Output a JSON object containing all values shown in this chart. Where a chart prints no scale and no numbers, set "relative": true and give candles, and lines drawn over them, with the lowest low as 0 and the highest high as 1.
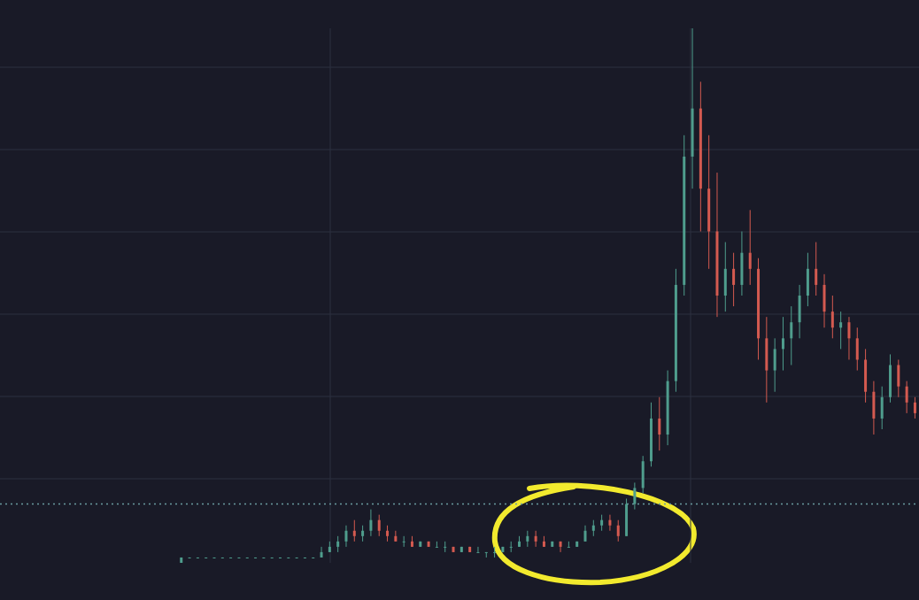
{
  "chart_data": {
    "type": "candlestick",
    "relative": true,
    "grid": true,
    "categories": [
      null,
      null,
      null,
      null,
      null,
      null,
      null,
      null,
      null,
      null,
      null,
      null,
      null,
      null,
      null,
      null,
      null,
      null,
      null,
      null,
      null,
      null,
      null,
      null,
      null,
      null,
      null,
      null,
      null,
      null,
      null,
      null,
      null,
      null,
      null,
      null,
      null,
      null,
      null,
      null,
      null,
      null,
      null,
      null,
      null,
      null,
      null,
      null,
      null,
      null,
      null,
      null,
      null,
      null,
      null,
      null,
      null,
      null,
      null,
      null,
      null,
      null,
      null,
      null,
      null,
      null,
      null,
      null,
      null,
      null,
      null,
      null,
      null,
      null,
      null,
      null,
      null,
      null,
      null,
      null,
      null,
      null,
      null,
      null,
      null,
      null,
      null,
      null,
      null,
      null
    ],
    "ohlc": [
      [
        0.0,
        0.01,
        0.0,
        0.01
      ],
      [
        0.01,
        0.01,
        0.01,
        0.01
      ],
      [
        0.01,
        0.01,
        0.01,
        0.01
      ],
      [
        0.01,
        0.01,
        0.01,
        0.01
      ],
      [
        0.01,
        0.01,
        0.01,
        0.01
      ],
      [
        0.01,
        0.01,
        0.01,
        0.01
      ],
      [
        0.01,
        0.01,
        0.01,
        0.01
      ],
      [
        0.01,
        0.01,
        0.01,
        0.01
      ],
      [
        0.01,
        0.01,
        0.01,
        0.01
      ],
      [
        0.01,
        0.01,
        0.01,
        0.01
      ],
      [
        0.01,
        0.01,
        0.01,
        0.01
      ],
      [
        0.01,
        0.01,
        0.01,
        0.01
      ],
      [
        0.01,
        0.01,
        0.01,
        0.01
      ],
      [
        0.01,
        0.01,
        0.01,
        0.01
      ],
      [
        0.01,
        0.01,
        0.01,
        0.01
      ],
      [
        0.01,
        0.01,
        0.01,
        0.01
      ],
      [
        0.01,
        0.01,
        0.01,
        0.01
      ],
      [
        0.01,
        0.03,
        0.01,
        0.02
      ],
      [
        0.02,
        0.04,
        0.02,
        0.03
      ],
      [
        0.03,
        0.05,
        0.02,
        0.04
      ],
      [
        0.04,
        0.07,
        0.03,
        0.06
      ],
      [
        0.06,
        0.08,
        0.04,
        0.05
      ],
      [
        0.05,
        0.07,
        0.04,
        0.06
      ],
      [
        0.06,
        0.1,
        0.05,
        0.08
      ],
      [
        0.08,
        0.09,
        0.05,
        0.06
      ],
      [
        0.06,
        0.07,
        0.04,
        0.05
      ],
      [
        0.05,
        0.06,
        0.04,
        0.04
      ],
      [
        0.04,
        0.05,
        0.03,
        0.04
      ],
      [
        0.04,
        0.05,
        0.03,
        0.03
      ],
      [
        0.03,
        0.04,
        0.03,
        0.04
      ],
      [
        0.04,
        0.04,
        0.03,
        0.03
      ],
      [
        0.03,
        0.04,
        0.03,
        0.03
      ],
      [
        0.03,
        0.04,
        0.02,
        0.03
      ],
      [
        0.03,
        0.03,
        0.02,
        0.02
      ],
      [
        0.02,
        0.03,
        0.02,
        0.03
      ],
      [
        0.03,
        0.03,
        0.02,
        0.02
      ],
      [
        0.02,
        0.03,
        0.02,
        0.02
      ],
      [
        0.02,
        0.02,
        0.01,
        0.02
      ],
      [
        0.02,
        0.03,
        0.01,
        0.02
      ],
      [
        0.02,
        0.03,
        0.02,
        0.03
      ],
      [
        0.03,
        0.04,
        0.02,
        0.03
      ],
      [
        0.03,
        0.05,
        0.03,
        0.04
      ],
      [
        0.04,
        0.06,
        0.03,
        0.05
      ],
      [
        0.05,
        0.06,
        0.03,
        0.04
      ],
      [
        0.04,
        0.05,
        0.03,
        0.03
      ],
      [
        0.03,
        0.04,
        0.03,
        0.04
      ],
      [
        0.04,
        0.04,
        0.02,
        0.03
      ],
      [
        0.03,
        0.04,
        0.03,
        0.03
      ],
      [
        0.03,
        0.04,
        0.03,
        0.04
      ],
      [
        0.04,
        0.07,
        0.04,
        0.06
      ],
      [
        0.06,
        0.08,
        0.05,
        0.07
      ],
      [
        0.07,
        0.09,
        0.06,
        0.08
      ],
      [
        0.08,
        0.09,
        0.06,
        0.07
      ],
      [
        0.07,
        0.08,
        0.04,
        0.05
      ],
      [
        0.05,
        0.12,
        0.05,
        0.11
      ],
      [
        0.11,
        0.15,
        0.1,
        0.14
      ],
      [
        0.14,
        0.2,
        0.13,
        0.19
      ],
      [
        0.19,
        0.3,
        0.18,
        0.27
      ],
      [
        0.27,
        0.31,
        0.21,
        0.24
      ],
      [
        0.24,
        0.36,
        0.22,
        0.34
      ],
      [
        0.34,
        0.55,
        0.32,
        0.52
      ],
      [
        0.52,
        0.8,
        0.5,
        0.76
      ],
      [
        0.76,
        1.0,
        0.7,
        0.85
      ],
      [
        0.85,
        0.9,
        0.62,
        0.7
      ],
      [
        0.7,
        0.8,
        0.55,
        0.62
      ],
      [
        0.62,
        0.73,
        0.46,
        0.5
      ],
      [
        0.5,
        0.6,
        0.47,
        0.55
      ],
      [
        0.55,
        0.58,
        0.48,
        0.52
      ],
      [
        0.52,
        0.62,
        0.5,
        0.58
      ],
      [
        0.58,
        0.66,
        0.52,
        0.55
      ],
      [
        0.55,
        0.57,
        0.38,
        0.42
      ],
      [
        0.42,
        0.46,
        0.3,
        0.36
      ],
      [
        0.36,
        0.42,
        0.32,
        0.4
      ],
      [
        0.4,
        0.46,
        0.36,
        0.42
      ],
      [
        0.42,
        0.48,
        0.37,
        0.45
      ],
      [
        0.45,
        0.52,
        0.42,
        0.5
      ],
      [
        0.5,
        0.58,
        0.48,
        0.55
      ],
      [
        0.55,
        0.6,
        0.5,
        0.52
      ],
      [
        0.52,
        0.54,
        0.44,
        0.47
      ],
      [
        0.47,
        0.5,
        0.42,
        0.44
      ],
      [
        0.44,
        0.47,
        0.4,
        0.45
      ],
      [
        0.45,
        0.46,
        0.38,
        0.42
      ],
      [
        0.42,
        0.44,
        0.36,
        0.38
      ],
      [
        0.38,
        0.4,
        0.3,
        0.32
      ],
      [
        0.32,
        0.34,
        0.24,
        0.27
      ],
      [
        0.27,
        0.33,
        0.25,
        0.31
      ],
      [
        0.31,
        0.39,
        0.3,
        0.37
      ],
      [
        0.37,
        0.38,
        0.31,
        0.33
      ],
      [
        0.33,
        0.34,
        0.28,
        0.3
      ],
      [
        0.3,
        0.31,
        0.27,
        0.28
      ]
    ],
    "colors": [
      "#4f9d8d",
      "#4f9d8d",
      "#4f9d8d",
      "#4f9d8d",
      "#4f9d8d",
      "#4f9d8d",
      "#4f9d8d",
      "#4f9d8d",
      "#4f9d8d",
      "#4f9d8d",
      "#4f9d8d",
      "#4f9d8d",
      "#4f9d8d",
      "#4f9d8d",
      "#4f9d8d",
      "#4f9d8d",
      "#4f9d8d",
      "#4f9d8d",
      "#4f9d8d",
      "#4f9d8d",
      "#4f9d8d",
      "#d45a50",
      "#4f9d8d",
      "#4f9d8d",
      "#d45a50",
      "#d45a50",
      "#d45a50",
      "#4f9d8d",
      "#d45a50",
      "#4f9d8d",
      "#d45a50",
      "#4f9d8d",
      "#4f9d8d",
      "#d45a50",
      "#4f9d8d",
      "#d45a50",
      "#4f9d8d",
      "#4f9d8d",
      "#4f9d8d",
      "#4f9d8d",
      "#4f9d8d",
      "#4f9d8d",
      "#4f9d8d",
      "#d45a50",
      "#d45a50",
      "#4f9d8d",
      "#d45a50",
      "#4f9d8d",
      "#4f9d8d",
      "#4f9d8d",
      "#4f9d8d",
      "#4f9d8d",
      "#d45a50",
      "#d45a50",
      "#4f9d8d",
      "#4f9d8d",
      "#4f9d8d",
      "#4f9d8d",
      "#d45a50",
      "#4f9d8d",
      "#4f9d8d",
      "#4f9d8d",
      "#4f9d8d",
      "#d45a50",
      "#d45a50",
      "#d45a50",
      "#4f9d8d",
      "#d45a50",
      "#4f9d8d",
      "#d45a50",
      "#d45a50",
      "#d45a50",
      "#4f9d8d",
      "#4f9d8d",
      "#4f9d8d",
      "#4f9d8d",
      "#4f9d8d",
      "#d45a50",
      "#d45a50",
      "#d45a50",
      "#4f9d8d",
      "#d45a50",
      "#d45a50",
      "#d45a50",
      "#d45a50",
      "#4f9d8d",
      "#4f9d8d",
      "#d45a50",
      "#d45a50",
      "#d45a50"
    ],
    "ref_lines": [
      {
        "axis": "y",
        "value": 0.11,
        "color": "#6a9aa0",
        "line_style": "dotted"
      }
    ]
  }
}
